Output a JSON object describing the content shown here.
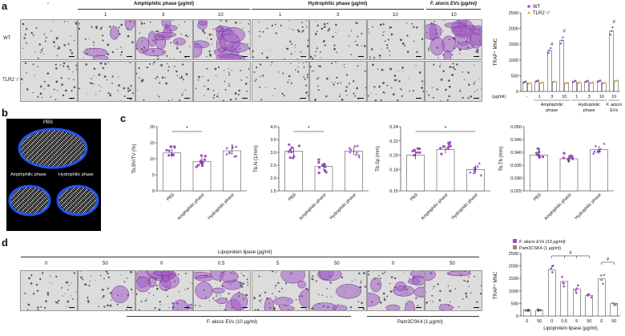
{
  "panels": {
    "a": "a",
    "b": "b",
    "c": "c",
    "d": "d"
  },
  "colors": {
    "purple": "#9b4fbf",
    "orange": "#f0a020",
    "grey": "#8a8a8a",
    "bone": "#2255ee"
  },
  "a": {
    "groups": [
      "-",
      "Amphiphilic phase (μg/ml)",
      "Hydrophilic phase (μg/ml)",
      "F. alocis EVs (μg/ml)"
    ],
    "doses": [
      "1",
      "3",
      "10",
      "1",
      "3",
      "10",
      "10"
    ],
    "rows": [
      "WT",
      "TLR2⁻/⁻"
    ],
    "chart_data": {
      "type": "bar",
      "ylabel": "TRAP⁺ MNC",
      "ylim": [
        0,
        2500
      ],
      "yticks": [
        0,
        500,
        1000,
        1500,
        2000,
        2500
      ],
      "unit_label": "(μg/ml)",
      "categories": [
        "-",
        "1",
        "3",
        "10",
        "1",
        "3",
        "10",
        "10"
      ],
      "group_labels": [
        "Amphiphilic phase",
        "Hydrophilic phase",
        "F. alocis EVs"
      ],
      "sig": [
        "#",
        "#",
        "#"
      ],
      "series": [
        {
          "name": "WT",
          "values": [
            300,
            330,
            1300,
            1620,
            320,
            320,
            330,
            1920
          ]
        },
        {
          "name": "TLR2⁻/⁻",
          "values": [
            260,
            280,
            310,
            270,
            280,
            280,
            270,
            340
          ]
        }
      ]
    }
  },
  "b": {
    "labels": [
      "PBS",
      "Amphiphilic phase",
      "Hydrophilic phase"
    ]
  },
  "c": {
    "charts": [
      {
        "type": "bar",
        "ylabel": "Tb.BV/TV (%)",
        "ylim": [
          0,
          20
        ],
        "yticks": [
          "0",
          "5",
          "10",
          "15",
          "20"
        ],
        "categories": [
          "PBS",
          "Amphiphilic phase",
          "Hydrophilic phase"
        ],
        "values": [
          11.8,
          9.2,
          12.5
        ],
        "sig": "*"
      },
      {
        "type": "bar",
        "ylabel": "Tb.N (1/mm)",
        "ylim": [
          1.5,
          4.0
        ],
        "yticks": [
          "1.5",
          "2.0",
          "2.5",
          "3.0",
          "3.5",
          "4.0"
        ],
        "categories": [
          "PBS",
          "Amphiphilic phase",
          "Hydrophilic phase"
        ],
        "values": [
          3.05,
          2.45,
          3.05
        ],
        "sig": "*"
      },
      {
        "type": "bar",
        "ylabel": "Tb.Sp (mm)",
        "ylim": [
          0.15,
          0.24
        ],
        "yticks": [
          "0.15",
          "0.18",
          "0.20",
          "0.22",
          "0.24"
        ],
        "categories": [
          "PBS",
          "Amphiphilic phase",
          "Hydrophilic phase"
        ],
        "values": [
          0.2,
          0.208,
          0.18
        ],
        "sig": "*"
      },
      {
        "type": "bar",
        "ylabel": "Tb.Th (mm)",
        "ylim": [
          0.025,
          0.05
        ],
        "yticks": [
          "0.025",
          "0.030",
          "0.035",
          "0.040",
          "0.045",
          "0.050"
        ],
        "categories": [
          "PBS",
          "Amphiphilic phase",
          "Hydrophilic phase"
        ],
        "values": [
          0.039,
          0.0375,
          0.041
        ],
        "sig": ""
      }
    ]
  },
  "d": {
    "title": "Lipoprotein lipase (μg/ml)",
    "doses": [
      "0",
      "50",
      "0",
      "0.5",
      "5",
      "50",
      "0",
      "50"
    ],
    "brackets": [
      "F. alocis EVs (10 μg/ml)",
      "Pam3CSK4 (1 μg/ml)"
    ],
    "chart_data": {
      "type": "bar",
      "ylabel": "TRAP⁺ MNC",
      "xlabel": "Lipoprotein lipase (μg/ml)",
      "ylim": [
        0,
        2500
      ],
      "yticks": [
        0,
        500,
        1000,
        1500,
        2000,
        2500
      ],
      "categories": [
        "0",
        "50",
        "0",
        "0.5",
        "5",
        "50",
        "0",
        "50"
      ],
      "values": [
        240,
        230,
        1850,
        1380,
        1080,
        820,
        1480,
        500
      ],
      "bar_series": [
        "none",
        "none",
        "EVs",
        "EVs",
        "EVs",
        "EVs",
        "Pam",
        "Pam"
      ],
      "legend": [
        "F. alocis EVs (10 μg/ml)",
        "Pam3CSK4 (1 μg/ml)"
      ],
      "sig": [
        "#",
        "#"
      ]
    }
  }
}
